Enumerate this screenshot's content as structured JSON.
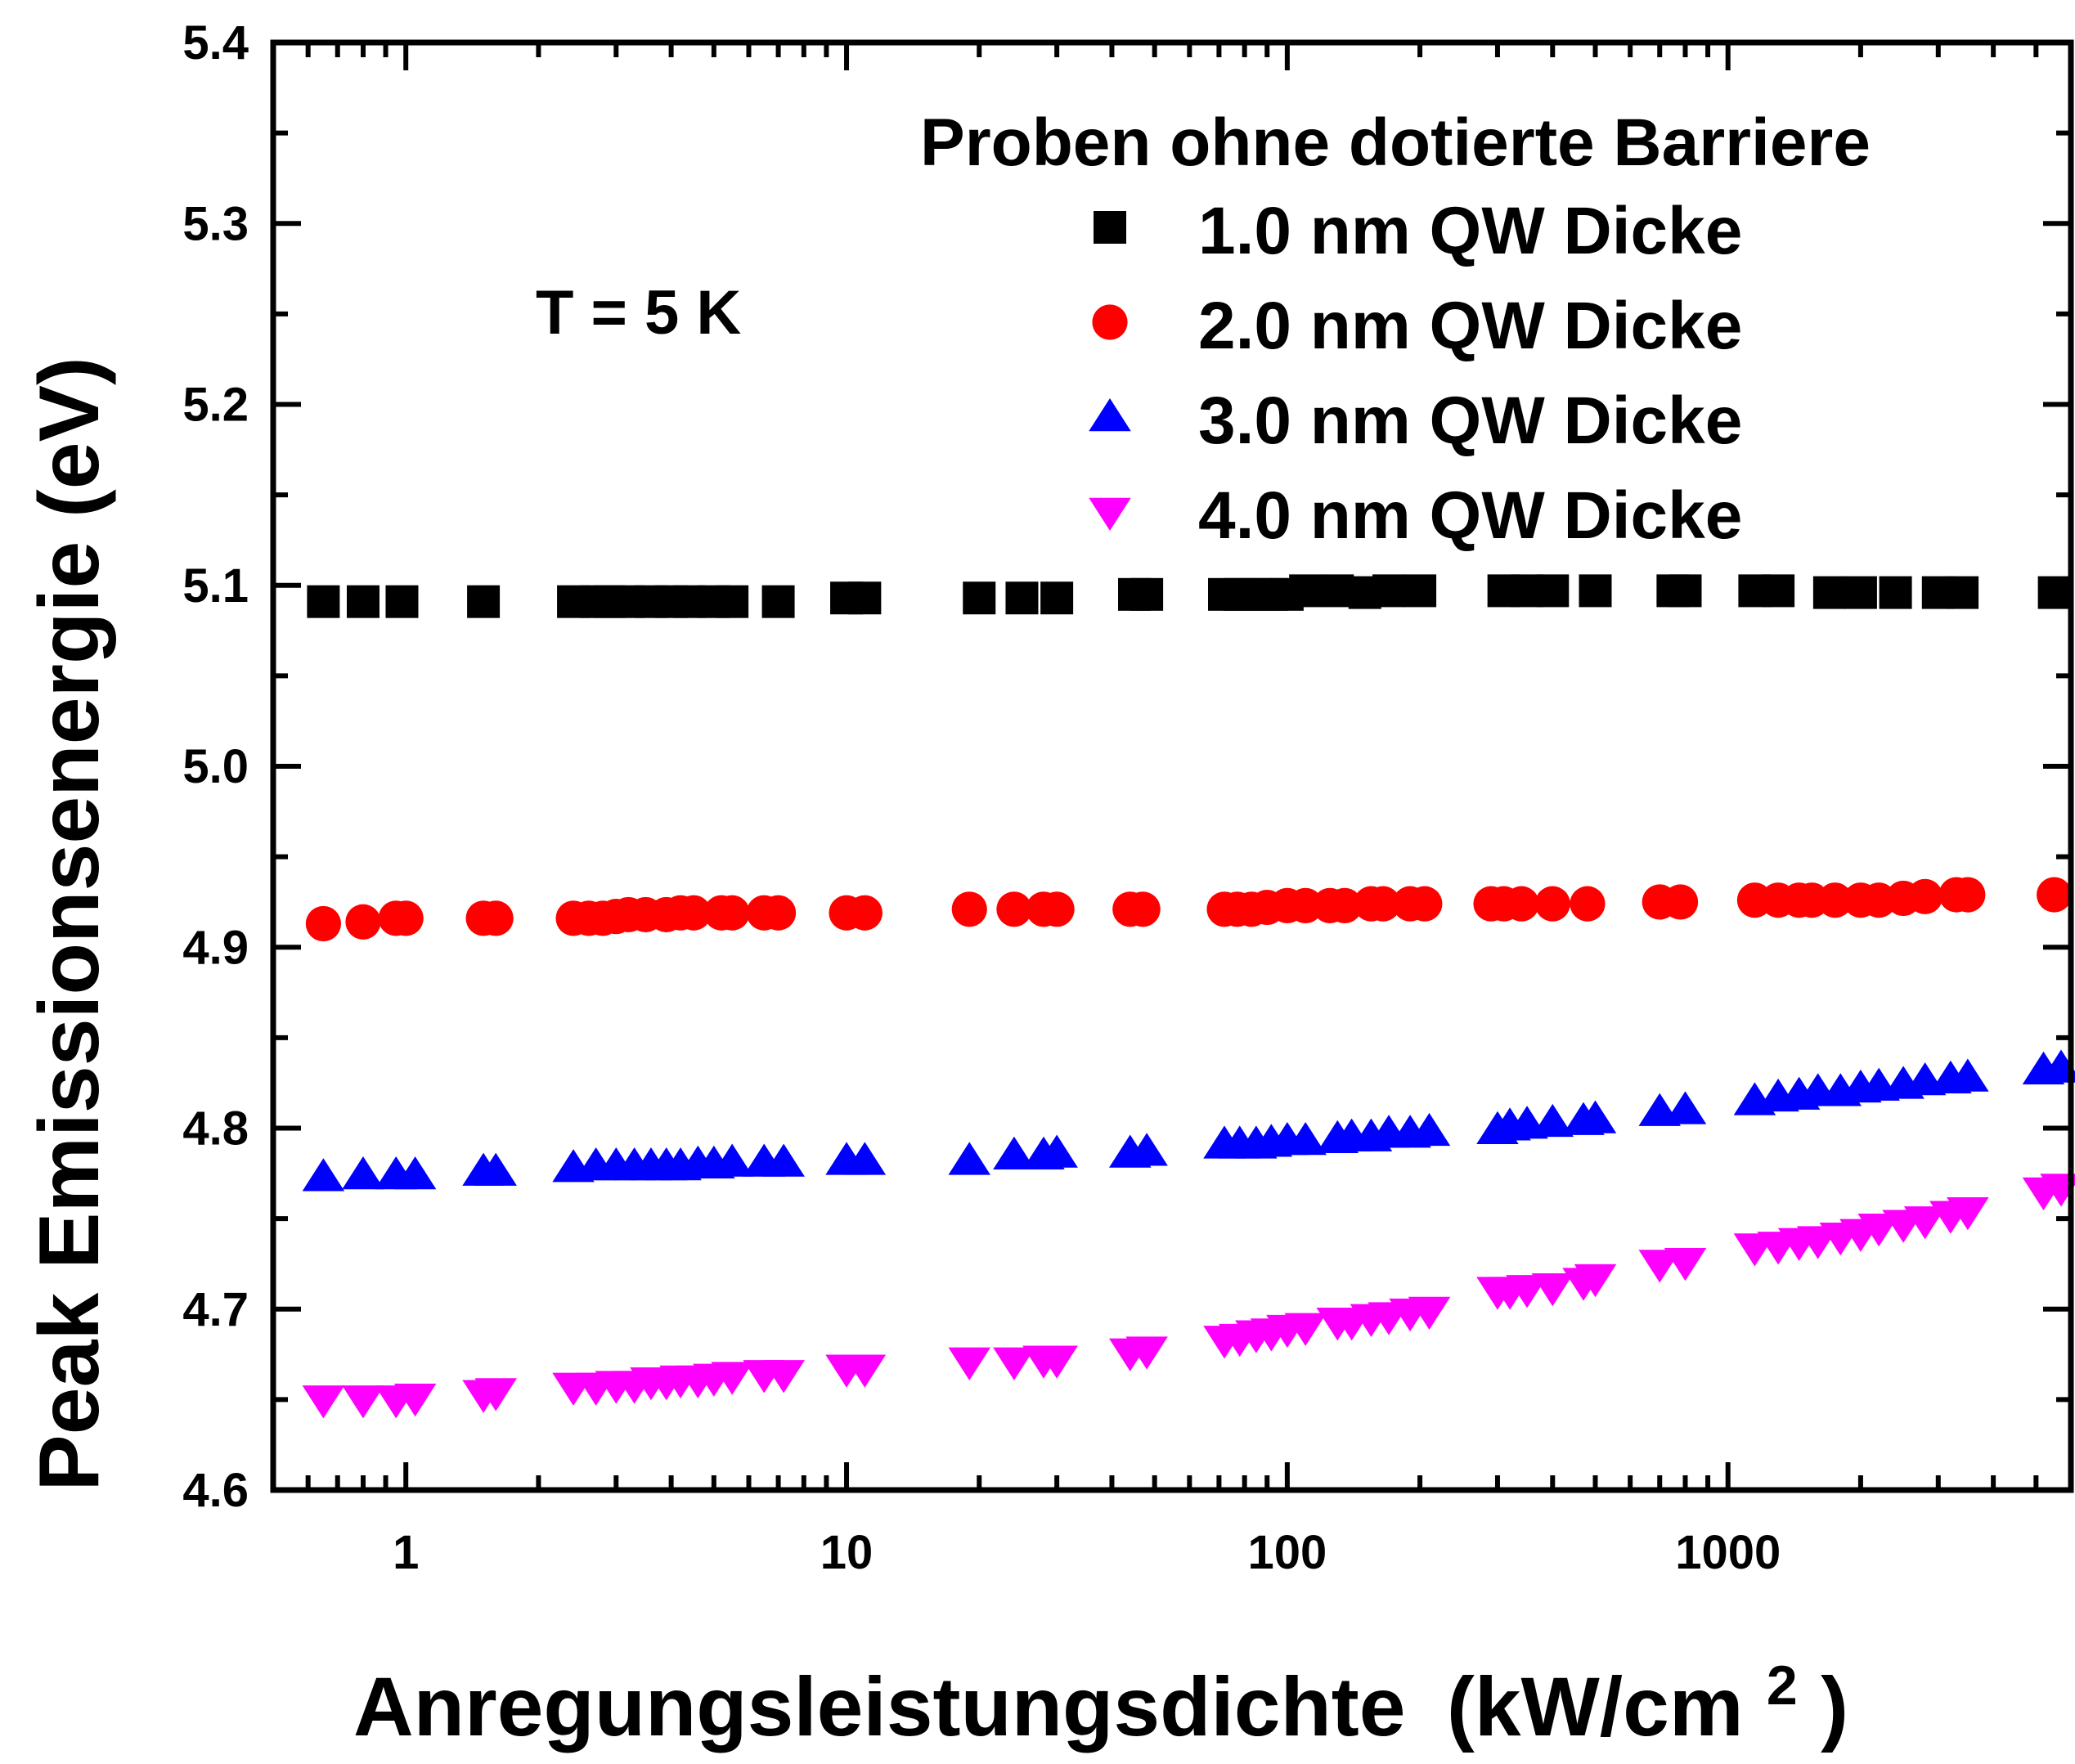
{
  "chart_data": {
    "type": "scatter",
    "xlabel": "Anregungsleistungsdichte",
    "xlabel_unit_open": "(kW/cm",
    "xlabel_unit_sup": "2",
    "xlabel_unit_close": ")",
    "ylabel": "Peak Emissionsenergie (eV)",
    "xscale": "log",
    "xlim": [
      0.5,
      6000
    ],
    "ylim": [
      4.6,
      5.4
    ],
    "xticks": [
      1,
      10,
      100,
      1000
    ],
    "xtick_labels": [
      "1",
      "10",
      "100",
      "1000"
    ],
    "yticks": [
      4.6,
      4.7,
      4.8,
      4.9,
      5.0,
      5.1,
      5.2,
      5.3,
      5.4
    ],
    "ytick_labels": [
      "4.6",
      "4.7",
      "4.8",
      "4.9",
      "5.0",
      "5.1",
      "5.2",
      "5.3",
      "5.4"
    ],
    "grid": false,
    "annotation": "T = 5 K",
    "legend_title": "Proben ohne dotierte Barriere",
    "legend_position": "top-right",
    "series": [
      {
        "name": "1.0 nm QW Dicke",
        "marker": "square",
        "color": "#000000",
        "x": [
          0.65,
          0.8,
          0.98,
          1.5,
          2.4,
          2.7,
          2.9,
          3.2,
          3.6,
          4.0,
          4.4,
          5.0,
          5.5,
          7.0,
          10,
          11,
          20,
          25,
          30,
          45,
          48,
          72,
          78,
          85,
          92,
          100,
          110,
          130,
          150,
          170,
          200,
          310,
          350,
          400,
          500,
          750,
          800,
          1150,
          1300,
          1700,
          2000,
          2400,
          3000,
          3400,
          5500
        ],
        "y": [
          5.091,
          5.091,
          5.091,
          5.091,
          5.091,
          5.091,
          5.091,
          5.091,
          5.091,
          5.091,
          5.091,
          5.091,
          5.091,
          5.091,
          5.093,
          5.093,
          5.093,
          5.093,
          5.093,
          5.095,
          5.095,
          5.095,
          5.095,
          5.095,
          5.095,
          5.095,
          5.097,
          5.097,
          5.096,
          5.097,
          5.097,
          5.097,
          5.097,
          5.097,
          5.097,
          5.097,
          5.097,
          5.097,
          5.097,
          5.096,
          5.096,
          5.096,
          5.096,
          5.096,
          5.096
        ]
      },
      {
        "name": "2.0 nm QW Dicke",
        "marker": "circle",
        "color": "#ff0000",
        "x": [
          0.65,
          0.8,
          0.95,
          1.0,
          1.5,
          1.6,
          2.4,
          2.6,
          2.8,
          3.0,
          3.2,
          3.5,
          3.9,
          4.2,
          4.5,
          5.2,
          5.5,
          6.5,
          7.0,
          10,
          11,
          19,
          24,
          28,
          30,
          44,
          47,
          72,
          77,
          83,
          90,
          100,
          110,
          125,
          135,
          155,
          165,
          190,
          205,
          290,
          310,
          340,
          400,
          480,
          700,
          780,
          1150,
          1300,
          1450,
          1550,
          1750,
          2000,
          2200,
          2500,
          2800,
          3300,
          3500,
          5500
        ],
        "y": [
          4.913,
          4.914,
          4.916,
          4.916,
          4.916,
          4.916,
          4.916,
          4.916,
          4.916,
          4.917,
          4.918,
          4.918,
          4.918,
          4.919,
          4.919,
          4.919,
          4.919,
          4.919,
          4.919,
          4.919,
          4.919,
          4.921,
          4.921,
          4.921,
          4.921,
          4.921,
          4.921,
          4.921,
          4.921,
          4.921,
          4.922,
          4.923,
          4.923,
          4.923,
          4.923,
          4.924,
          4.924,
          4.924,
          4.924,
          4.924,
          4.924,
          4.924,
          4.924,
          4.924,
          4.925,
          4.925,
          4.926,
          4.926,
          4.926,
          4.926,
          4.926,
          4.926,
          4.926,
          4.927,
          4.928,
          4.929,
          4.929,
          4.929
        ]
      },
      {
        "name": "3.0 nm QW Dicke",
        "marker": "triangle-up",
        "color": "#0000ff",
        "x": [
          0.65,
          0.8,
          0.95,
          1.05,
          1.5,
          1.6,
          2.4,
          2.7,
          3.0,
          3.3,
          3.6,
          3.9,
          4.2,
          4.6,
          5.0,
          5.5,
          6.5,
          7.2,
          10,
          11,
          19,
          24,
          28,
          30,
          44,
          48,
          72,
          78,
          85,
          92,
          100,
          110,
          130,
          140,
          155,
          170,
          190,
          210,
          300,
          320,
          350,
          400,
          470,
          500,
          700,
          800,
          1150,
          1300,
          1450,
          1600,
          1800,
          2000,
          2200,
          2500,
          2800,
          3200,
          3500,
          5200,
          5700
        ],
        "y": [
          4.773,
          4.774,
          4.774,
          4.774,
          4.776,
          4.776,
          4.778,
          4.779,
          4.779,
          4.779,
          4.779,
          4.779,
          4.779,
          4.78,
          4.78,
          4.781,
          4.781,
          4.781,
          4.782,
          4.782,
          4.782,
          4.785,
          4.785,
          4.786,
          4.786,
          4.787,
          4.791,
          4.791,
          4.791,
          4.792,
          4.793,
          4.793,
          4.794,
          4.795,
          4.795,
          4.797,
          4.797,
          4.798,
          4.799,
          4.801,
          4.802,
          4.803,
          4.804,
          4.805,
          4.809,
          4.81,
          4.815,
          4.817,
          4.818,
          4.82,
          4.82,
          4.822,
          4.823,
          4.824,
          4.826,
          4.827,
          4.828,
          4.832,
          4.833
        ]
      },
      {
        "name": "4.0 nm QW Dicke",
        "marker": "triangle-down",
        "color": "#ff00ff",
        "x": [
          0.65,
          0.8,
          0.95,
          1.05,
          1.5,
          1.6,
          2.4,
          2.7,
          3.0,
          3.3,
          3.6,
          3.9,
          4.2,
          4.6,
          5.0,
          5.5,
          6.5,
          7.2,
          10,
          11,
          19,
          24,
          28,
          30,
          44,
          48,
          72,
          78,
          85,
          92,
          100,
          110,
          130,
          140,
          155,
          170,
          190,
          210,
          300,
          320,
          350,
          400,
          470,
          500,
          700,
          800,
          1150,
          1300,
          1450,
          1600,
          1800,
          2000,
          2200,
          2500,
          2800,
          3200,
          3500,
          5200,
          5700
        ],
        "y": [
          4.65,
          4.65,
          4.65,
          4.651,
          4.653,
          4.654,
          4.657,
          4.657,
          4.658,
          4.658,
          4.66,
          4.66,
          4.661,
          4.661,
          4.662,
          4.663,
          4.664,
          4.664,
          4.667,
          4.667,
          4.671,
          4.671,
          4.672,
          4.672,
          4.676,
          4.677,
          4.683,
          4.684,
          4.686,
          4.687,
          4.689,
          4.69,
          4.693,
          4.693,
          4.695,
          4.696,
          4.698,
          4.699,
          4.71,
          4.71,
          4.711,
          4.712,
          4.715,
          4.717,
          4.725,
          4.726,
          4.734,
          4.735,
          4.737,
          4.738,
          4.74,
          4.742,
          4.745,
          4.747,
          4.749,
          4.752,
          4.754,
          4.765,
          4.767
        ]
      }
    ]
  }
}
